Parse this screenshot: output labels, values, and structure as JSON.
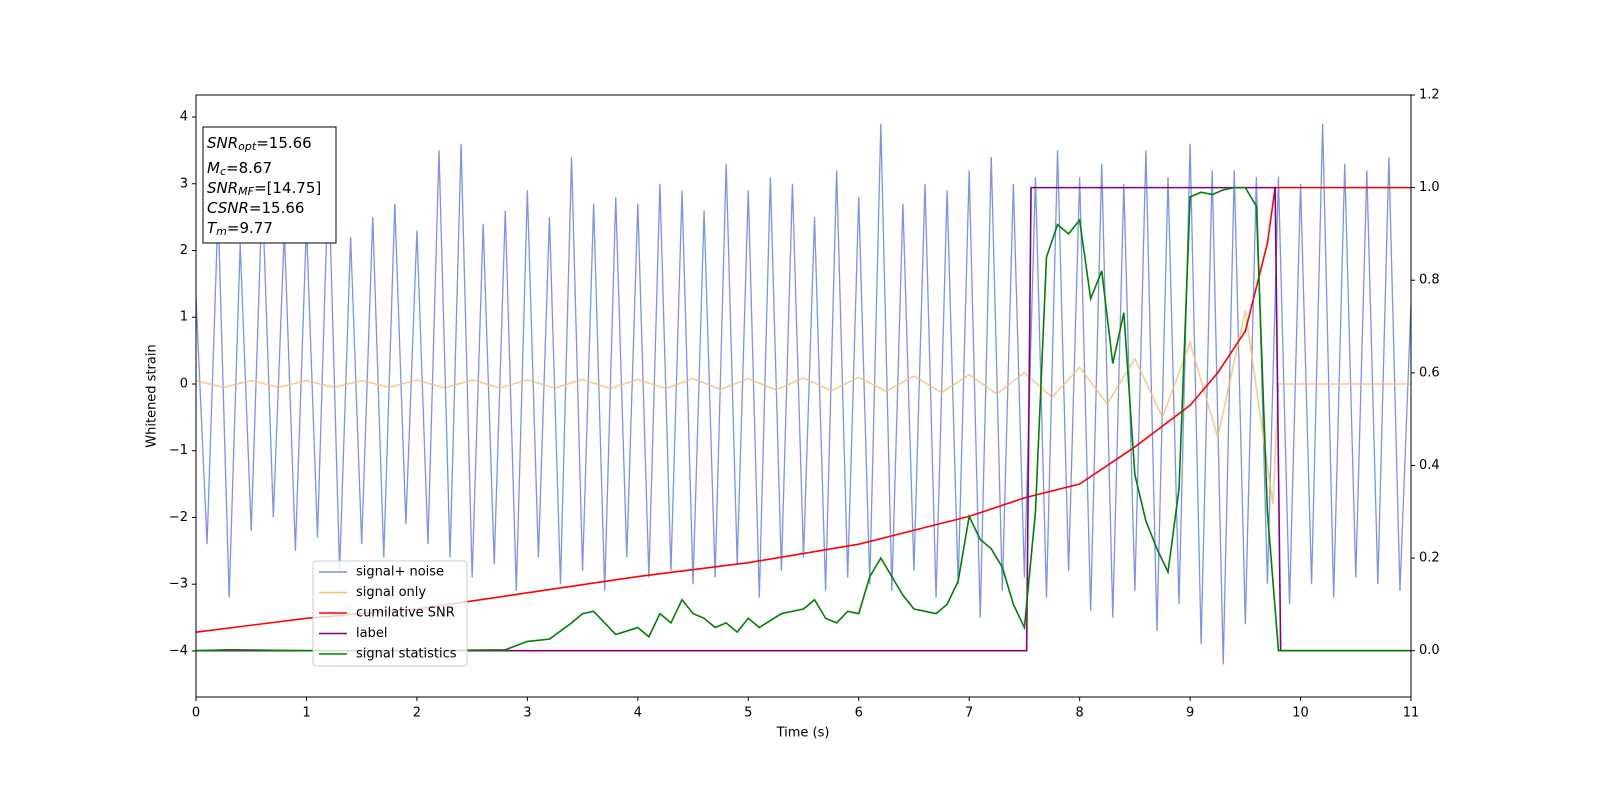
{
  "chart_data": {
    "type": "line",
    "xlabel": "Time (s)",
    "ylabel": "Whitened strain",
    "xlim": [
      0,
      11
    ],
    "xticks": [
      0,
      1,
      2,
      3,
      4,
      5,
      6,
      7,
      8,
      9,
      10,
      11
    ],
    "ylim": [
      -4.69,
      4.33
    ],
    "yticks": [
      {
        "value": -4,
        "label": "−4"
      },
      {
        "value": -3,
        "label": "−3"
      },
      {
        "value": -2,
        "label": "−2"
      },
      {
        "value": -1,
        "label": "−1"
      },
      0,
      1,
      2,
      3,
      4
    ],
    "y2lim": [
      -0.1,
      1.2
    ],
    "y2ticks": [
      {
        "value": 0,
        "label": "0.0"
      },
      {
        "value": 0.2,
        "label": "0.2"
      },
      {
        "value": 0.4,
        "label": "0.4"
      },
      {
        "value": 0.6,
        "label": "0.6"
      },
      {
        "value": 0.8,
        "label": "0.8"
      },
      {
        "value": 1,
        "label": "1.0"
      },
      {
        "value": 1.2,
        "label": "1.2"
      }
    ],
    "grid": false,
    "legend_loc": "lower left",
    "annotation": [
      {
        "main": "SNR",
        "sub": "opt",
        "rest": "=15.66"
      },
      {
        "main": "M",
        "sub": "c",
        "rest": "=8.67"
      },
      {
        "main": "SNR",
        "sub": "MF",
        "rest": "=[14.75]"
      },
      {
        "main": "CSNR",
        "rest": "=15.66"
      },
      {
        "main": "T",
        "sub": "m",
        "rest": "=9.77"
      }
    ],
    "series": [
      {
        "name": "signal+ noise",
        "color": "#7b93e8",
        "x": [
          0,
          0.1,
          0.2,
          0.3,
          0.4,
          0.5,
          0.6,
          0.7,
          0.8,
          0.9,
          1,
          1.1,
          1.2,
          1.3,
          1.4,
          1.5,
          1.6,
          1.7,
          1.8,
          1.9,
          2,
          2.1,
          2.2,
          2.3,
          2.4,
          2.5,
          2.6,
          2.7,
          2.8,
          2.9,
          3,
          3.1,
          3.2,
          3.3,
          3.4,
          3.5,
          3.6,
          3.7,
          3.8,
          3.9,
          4,
          4.1,
          4.2,
          4.3,
          4.4,
          4.5,
          4.6,
          4.7,
          4.8,
          4.9,
          5,
          5.1,
          5.2,
          5.3,
          5.4,
          5.5,
          5.6,
          5.7,
          5.8,
          5.9,
          6,
          6.1,
          6.2,
          6.3,
          6.4,
          6.5,
          6.6,
          6.7,
          6.8,
          6.9,
          7,
          7.1,
          7.2,
          7.3,
          7.4,
          7.5,
          7.6,
          7.7,
          7.8,
          7.9,
          8,
          8.1,
          8.2,
          8.3,
          8.4,
          8.5,
          8.6,
          8.7,
          8.8,
          8.9,
          9,
          9.1,
          9.2,
          9.3,
          9.4,
          9.5,
          9.6,
          9.7,
          9.8,
          9.9,
          10,
          10.1,
          10.2,
          10.3,
          10.4,
          10.5,
          10.6,
          10.7,
          10.8,
          10.9,
          11
        ],
        "values": [
          1.3,
          -2.4,
          2.6,
          -3.2,
          2.1,
          -2.2,
          2.9,
          -2.0,
          2.3,
          -2.5,
          2.4,
          -2.3,
          3.2,
          -2.8,
          2.2,
          -2.4,
          2.5,
          -2.6,
          2.7,
          -2.1,
          2.3,
          -2.4,
          3.5,
          -2.6,
          3.6,
          -2.9,
          2.4,
          -2.7,
          2.6,
          -3.1,
          2.9,
          -2.6,
          2.5,
          -3.0,
          3.4,
          -2.8,
          2.7,
          -3.1,
          2.8,
          -2.6,
          2.7,
          -2.9,
          3.0,
          -2.8,
          2.9,
          -3.0,
          2.6,
          -2.9,
          3.3,
          -2.7,
          2.9,
          -3.2,
          3.1,
          -2.8,
          3.0,
          -2.6,
          2.5,
          -3.1,
          3.2,
          -2.9,
          2.8,
          -3.0,
          3.9,
          -3.1,
          2.7,
          -2.8,
          3.0,
          -3.2,
          2.9,
          -3.0,
          3.2,
          -3.5,
          3.4,
          -3.1,
          3.0,
          -2.9,
          3.1,
          -3.2,
          3.5,
          -2.8,
          3.1,
          -3.4,
          3.3,
          -3.5,
          3.0,
          -3.1,
          3.5,
          -3.7,
          3.1,
          -3.3,
          3.6,
          -3.9,
          3.2,
          -4.2,
          3.2,
          -3.6,
          3.1,
          -3.0,
          3.1,
          -3.3,
          3.0,
          -3.0,
          3.9,
          -3.2,
          3.3,
          -2.9,
          3.2,
          -3.0,
          3.4,
          -3.1,
          1.2
        ]
      },
      {
        "name": "signal only",
        "color": "#f5c16c",
        "x": [
          0,
          0.25,
          0.5,
          0.75,
          1,
          1.25,
          1.5,
          1.75,
          2,
          2.25,
          2.5,
          2.75,
          3,
          3.25,
          3.5,
          3.75,
          4,
          4.25,
          4.5,
          4.75,
          5,
          5.25,
          5.5,
          5.75,
          6,
          6.25,
          6.5,
          6.75,
          7,
          7.25,
          7.5,
          7.75,
          8,
          8.25,
          8.5,
          8.75,
          9,
          9.25,
          9.5,
          9.75,
          9.8,
          11
        ],
        "values": [
          0.05,
          -0.05,
          0.05,
          -0.05,
          0.05,
          -0.05,
          0.05,
          -0.05,
          0.06,
          -0.06,
          0.06,
          -0.06,
          0.06,
          -0.06,
          0.07,
          -0.07,
          0.07,
          -0.07,
          0.08,
          -0.08,
          0.08,
          -0.09,
          0.09,
          -0.1,
          0.1,
          -0.11,
          0.12,
          -0.13,
          0.14,
          -0.15,
          0.17,
          -0.2,
          0.25,
          -0.3,
          0.38,
          -0.5,
          0.62,
          -0.8,
          1.1,
          -1.8,
          0,
          0
        ]
      },
      {
        "name": "cumilative SNR",
        "color": "#ff0000",
        "axis": "y2",
        "x": [
          0,
          1,
          2,
          3,
          4,
          5,
          6,
          7,
          7.5,
          8,
          8.5,
          9,
          9.25,
          9.5,
          9.7,
          9.77,
          11
        ],
        "values": [
          0.04,
          0.07,
          0.09,
          0.125,
          0.16,
          0.19,
          0.23,
          0.29,
          0.33,
          0.36,
          0.44,
          0.53,
          0.6,
          0.69,
          0.88,
          1.0,
          1.0
        ]
      },
      {
        "name": "label",
        "color": "#800080",
        "axis": "y2",
        "x": [
          0,
          7.52,
          7.56,
          9.77,
          9.82,
          11
        ],
        "values": [
          0,
          0,
          1,
          1,
          0,
          0
        ]
      },
      {
        "name": "signal statistics",
        "color": "#008000",
        "axis": "y2",
        "x": [
          0,
          0.3,
          1,
          2,
          2.8,
          3,
          3.2,
          3.4,
          3.5,
          3.6,
          3.7,
          3.8,
          4,
          4.1,
          4.2,
          4.3,
          4.4,
          4.5,
          4.6,
          4.7,
          4.8,
          4.9,
          5,
          5.1,
          5.3,
          5.5,
          5.6,
          5.7,
          5.8,
          5.9,
          6,
          6.1,
          6.2,
          6.3,
          6.4,
          6.5,
          6.6,
          6.7,
          6.8,
          6.9,
          7,
          7.1,
          7.2,
          7.3,
          7.4,
          7.5,
          7.6,
          7.7,
          7.8,
          7.9,
          8,
          8.1,
          8.2,
          8.3,
          8.4,
          8.5,
          8.6,
          8.7,
          8.8,
          8.9,
          9,
          9.1,
          9.2,
          9.3,
          9.4,
          9.5,
          9.6,
          9.7,
          9.8,
          11
        ],
        "values": [
          0,
          0.002,
          0,
          0,
          0.002,
          0.02,
          0.025,
          0.06,
          0.08,
          0.085,
          0.06,
          0.035,
          0.05,
          0.03,
          0.08,
          0.06,
          0.11,
          0.08,
          0.07,
          0.05,
          0.06,
          0.04,
          0.07,
          0.05,
          0.08,
          0.09,
          0.11,
          0.07,
          0.06,
          0.085,
          0.08,
          0.16,
          0.2,
          0.16,
          0.12,
          0.09,
          0.085,
          0.08,
          0.1,
          0.15,
          0.29,
          0.24,
          0.22,
          0.18,
          0.1,
          0.05,
          0.3,
          0.85,
          0.92,
          0.9,
          0.93,
          0.76,
          0.82,
          0.62,
          0.73,
          0.38,
          0.28,
          0.22,
          0.17,
          0.35,
          0.98,
          0.99,
          0.985,
          0.995,
          1.0,
          1.0,
          0.96,
          0.3,
          0.0,
          0
        ]
      }
    ]
  }
}
